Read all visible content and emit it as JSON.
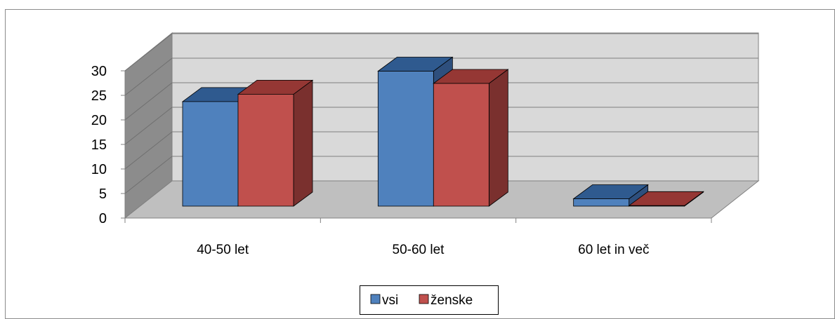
{
  "chart_data": {
    "type": "bar",
    "categories": [
      "40-50 let",
      "50-60 let",
      "60 let in več"
    ],
    "series": [
      {
        "name": "vsi",
        "values": [
          21.3,
          27.5,
          1.5
        ],
        "color": "#4F81BD",
        "top_color": "#2F5A8F",
        "side_color": "#2E4F7D"
      },
      {
        "name": "ženske",
        "values": [
          22.8,
          25.0,
          0.1
        ],
        "color": "#C0504D",
        "top_color": "#953734",
        "side_color": "#7A302E"
      }
    ],
    "y_ticks": [
      "0",
      "5",
      "10",
      "15",
      "20",
      "25",
      "30"
    ],
    "ylim": [
      0,
      30
    ],
    "grid": true,
    "legend_position": "bottom",
    "three_d": true,
    "title": "",
    "xlabel": "",
    "ylabel": ""
  }
}
